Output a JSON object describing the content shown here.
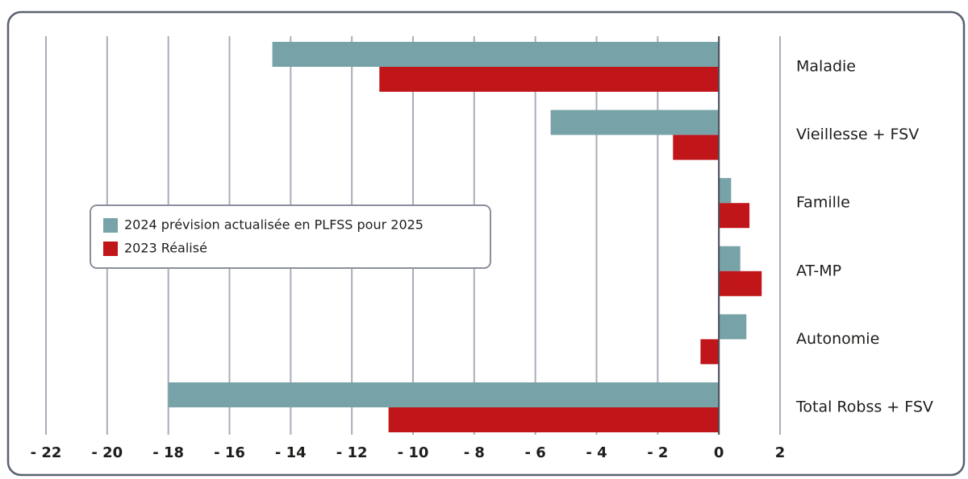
{
  "chart_data": {
    "type": "barh",
    "categories": [
      "Maladie",
      "Vieillesse + FSV",
      "Famille",
      "AT-MP",
      "Autonomie",
      "Total Robss + FSV"
    ],
    "series": [
      {
        "name": "2024 prévision actualisée en PLFSS pour 2025",
        "color": "#77a2a8",
        "values": [
          -14.6,
          -5.5,
          0.4,
          0.7,
          0.9,
          -18.0
        ]
      },
      {
        "name": "2023 Réalisé",
        "color": "#c0161a",
        "values": [
          -11.1,
          -1.5,
          1.0,
          1.4,
          -0.6,
          -10.8
        ]
      }
    ],
    "xlim": [
      -22,
      2
    ],
    "xticks": [
      {
        "value": -22,
        "label": "- 22"
      },
      {
        "value": -20,
        "label": "- 20"
      },
      {
        "value": -18,
        "label": "- 18"
      },
      {
        "value": -16,
        "label": "- 16"
      },
      {
        "value": -14,
        "label": "- 14"
      },
      {
        "value": -12,
        "label": "- 12"
      },
      {
        "value": -10,
        "label": "- 10"
      },
      {
        "value": -8,
        "label": "- 8"
      },
      {
        "value": -6,
        "label": "- 6"
      },
      {
        "value": -4,
        "label": "- 4"
      },
      {
        "value": -2,
        "label": "- 2"
      },
      0,
      2
    ],
    "grid": true
  }
}
